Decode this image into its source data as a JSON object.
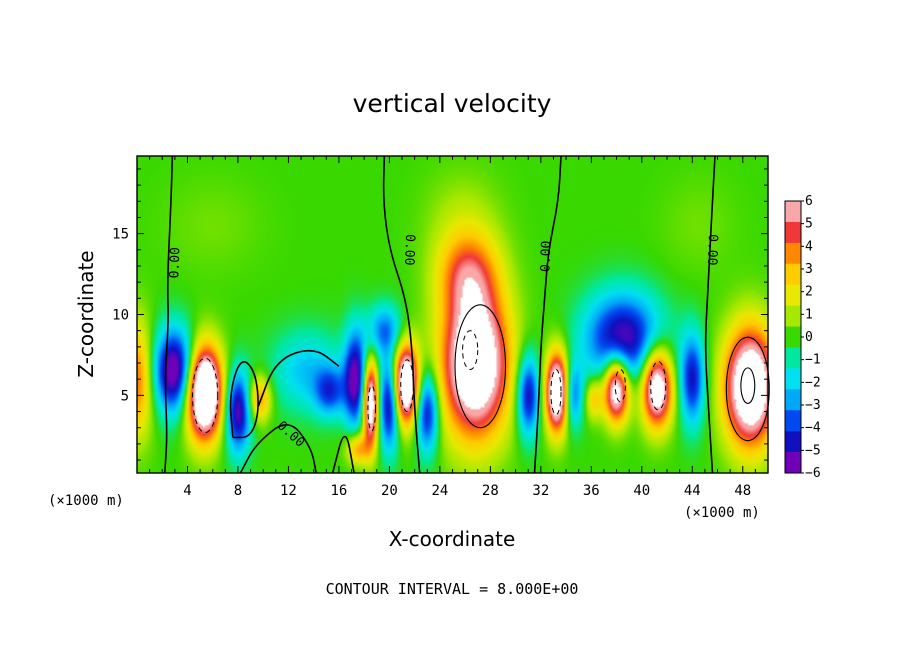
{
  "chart_data": {
    "type": "heatmap",
    "title": "vertical velocity",
    "xlabel": "X-coordinate",
    "ylabel": "Z-coordinate",
    "x_unit": "(×1000 m)",
    "x_unit_right": "(×1000 m)",
    "xlim": [
      0,
      50
    ],
    "ylim": [
      0.2,
      19.8
    ],
    "x_ticks": [
      4,
      8,
      12,
      16,
      20,
      24,
      28,
      32,
      36,
      40,
      44,
      48
    ],
    "y_ticks": [
      5,
      10,
      15
    ],
    "note": "CONTOUR INTERVAL = 8.000E+00",
    "contour_label": "0.00",
    "colorbar": {
      "min": -6,
      "max": 6,
      "ticks": [
        6,
        5,
        4,
        3,
        2,
        1,
        0,
        -1,
        -2,
        -3,
        -4,
        -5,
        -6
      ],
      "colors": [
        "#f8a8a8",
        "#f03838",
        "#ff8800",
        "#ffcc00",
        "#e8e800",
        "#a6e800",
        "#38d800",
        "#00e8a0",
        "#00e0f0",
        "#00a8f8",
        "#0048f0",
        "#1010c0",
        "#7000b8"
      ],
      "saturation_color": "#ffffff"
    },
    "features": [
      {
        "x": 0.0,
        "z": 6.0,
        "sx": 1.3,
        "sz": 3.5,
        "w": 4.5
      },
      {
        "x": 5.3,
        "z": 5.2,
        "sx": 1.4,
        "sz": 2.8,
        "w": 12
      },
      {
        "x": 3.0,
        "z": 6.5,
        "sx": 1.7,
        "sz": 2.6,
        "w": -7
      },
      {
        "x": 8.0,
        "z": 4.0,
        "sx": 1.0,
        "sz": 2.5,
        "w": -6
      },
      {
        "x": 9.7,
        "z": 4.8,
        "sx": 0.9,
        "sz": 1.4,
        "w": 4
      },
      {
        "x": 13.5,
        "z": 6.5,
        "sx": 2.8,
        "sz": 2.5,
        "w": -2.5
      },
      {
        "x": 15.3,
        "z": 5.2,
        "sx": 1.2,
        "sz": 1.5,
        "w": -3.5
      },
      {
        "x": 18.5,
        "z": 4.5,
        "sx": 0.6,
        "sz": 2.6,
        "w": 9
      },
      {
        "x": 17.3,
        "z": 6.0,
        "sx": 0.9,
        "sz": 3.0,
        "w": -6
      },
      {
        "x": 17.5,
        "z": 1.7,
        "sx": 0.9,
        "sz": 1.0,
        "w": 4
      },
      {
        "x": 21.3,
        "z": 5.7,
        "sx": 1.0,
        "sz": 2.4,
        "w": 10
      },
      {
        "x": 20.0,
        "z": 4.5,
        "sx": 0.8,
        "sz": 2.8,
        "w": -6
      },
      {
        "x": 19.6,
        "z": 9.0,
        "sx": 1.4,
        "sz": 1.6,
        "w": -3.5
      },
      {
        "x": 26.8,
        "z": 7.0,
        "sx": 2.6,
        "sz": 4.5,
        "w": 10
      },
      {
        "x": 26.2,
        "z": 12.5,
        "sx": 2.4,
        "sz": 2.6,
        "w": 4
      },
      {
        "x": 25.8,
        "z": 16.0,
        "sx": 3.0,
        "sz": 3.0,
        "w": 1
      },
      {
        "x": 23.0,
        "z": 4.0,
        "sx": 0.9,
        "sz": 2.5,
        "w": -5.5
      },
      {
        "x": 31.0,
        "z": 5.0,
        "sx": 0.9,
        "sz": 2.5,
        "w": -5.5
      },
      {
        "x": 33.3,
        "z": 5.2,
        "sx": 0.9,
        "sz": 2.4,
        "w": 10
      },
      {
        "x": 34.5,
        "z": 5.0,
        "sx": 0.8,
        "sz": 2.0,
        "w": -4
      },
      {
        "x": 36.2,
        "z": 4.8,
        "sx": 0.7,
        "sz": 1.3,
        "w": 3
      },
      {
        "x": 38.0,
        "z": 5.4,
        "sx": 1.0,
        "sz": 2.0,
        "w": 9
      },
      {
        "x": 41.2,
        "z": 5.5,
        "sx": 1.2,
        "sz": 2.4,
        "w": 9
      },
      {
        "x": 38.5,
        "z": 8.5,
        "sx": 3.0,
        "sz": 2.8,
        "w": -6
      },
      {
        "x": 44.0,
        "z": 6.0,
        "sx": 1.0,
        "sz": 2.8,
        "w": -5
      },
      {
        "x": 48.6,
        "z": 5.5,
        "sx": 2.0,
        "sz": 3.6,
        "w": 10
      },
      {
        "x": 44.5,
        "z": 15.5,
        "sx": 3.0,
        "sz": 3.0,
        "w": 0.5
      },
      {
        "x": 6.0,
        "z": 15.5,
        "sx": 4.0,
        "sz": 3.0,
        "w": 0.5
      }
    ],
    "zero_contours": [
      {
        "points": [
          [
            2.8,
            19.8
          ],
          [
            2.7,
            17.0
          ],
          [
            2.4,
            12.0
          ],
          [
            2.5,
            9.5
          ],
          [
            2.2,
            6.0
          ],
          [
            2.4,
            2.5
          ],
          [
            2.2,
            0.2
          ]
        ]
      },
      {
        "points": [
          [
            8.2,
            0.2
          ],
          [
            9.4,
            2.0
          ],
          [
            12.0,
            3.6
          ],
          [
            13.8,
            1.8
          ],
          [
            14.2,
            0.2
          ]
        ]
      },
      {
        "points": [
          [
            7.6,
            2.4
          ],
          [
            7.3,
            5.0
          ],
          [
            8.2,
            7.4
          ],
          [
            9.4,
            6.5
          ],
          [
            9.7,
            4.0
          ],
          [
            9.0,
            2.4
          ],
          [
            7.6,
            2.4
          ]
        ]
      },
      {
        "points": [
          [
            9.6,
            4.3
          ],
          [
            11.0,
            7.2
          ],
          [
            14.0,
            8.0
          ],
          [
            16.0,
            6.8
          ]
        ]
      },
      {
        "points": [
          [
            19.6,
            19.8
          ],
          [
            19.5,
            17.0
          ],
          [
            20.0,
            14.0
          ],
          [
            21.3,
            11.0
          ],
          [
            21.8,
            8.0
          ],
          [
            22.0,
            4.0
          ],
          [
            22.4,
            0.2
          ]
        ]
      },
      {
        "points": [
          [
            15.5,
            0.2
          ],
          [
            16.5,
            3.2
          ],
          [
            17.2,
            0.2
          ]
        ]
      },
      {
        "points": [
          [
            33.6,
            19.8
          ],
          [
            33.4,
            17.0
          ],
          [
            32.6,
            14.0
          ],
          [
            32.3,
            11.0
          ],
          [
            32.0,
            8.0
          ],
          [
            31.8,
            4.0
          ],
          [
            31.5,
            0.2
          ]
        ]
      },
      {
        "points": [
          [
            45.8,
            19.8
          ],
          [
            45.6,
            17.0
          ],
          [
            45.4,
            14.0
          ],
          [
            45.2,
            11.0
          ],
          [
            45.0,
            8.0
          ],
          [
            45.3,
            4.0
          ],
          [
            45.6,
            0.2
          ]
        ]
      }
    ],
    "contour_label_positions": [
      {
        "x": 3.0,
        "z": 13.2,
        "angle": -88
      },
      {
        "x": 12.2,
        "z": 2.6,
        "angle": 42
      },
      {
        "x": 21.6,
        "z": 14.0,
        "angle": 92
      },
      {
        "x": 32.4,
        "z": 13.6,
        "angle": -88
      },
      {
        "x": 45.6,
        "z": 14.0,
        "angle": 92
      }
    ],
    "inner_contours": [
      {
        "kind": "solid",
        "cx": 27.2,
        "cz": 6.8,
        "rx": 2.0,
        "rz": 3.8
      },
      {
        "kind": "solid",
        "cx": 48.4,
        "cz": 5.4,
        "rx": 1.7,
        "rz": 3.2
      },
      {
        "kind": "solid",
        "cx": 48.4,
        "cz": 5.6,
        "rx": 0.55,
        "rz": 1.1
      },
      {
        "kind": "dashed",
        "cx": 5.4,
        "cz": 5.0,
        "rx": 1.0,
        "rz": 2.3
      },
      {
        "kind": "dashed",
        "cx": 21.4,
        "cz": 5.6,
        "rx": 0.5,
        "rz": 1.6
      },
      {
        "kind": "dashed",
        "cx": 18.6,
        "cz": 4.2,
        "rx": 0.3,
        "rz": 1.4
      },
      {
        "kind": "dashed",
        "cx": 41.3,
        "cz": 5.6,
        "rx": 0.6,
        "rz": 1.5
      },
      {
        "kind": "dashed",
        "cx": 38.3,
        "cz": 5.6,
        "rx": 0.4,
        "rz": 1.0
      },
      {
        "kind": "dashed",
        "cx": 33.2,
        "cz": 5.2,
        "rx": 0.4,
        "rz": 1.4
      },
      {
        "kind": "dashed",
        "cx": 26.4,
        "cz": 7.8,
        "rx": 0.6,
        "rz": 1.2
      }
    ]
  }
}
